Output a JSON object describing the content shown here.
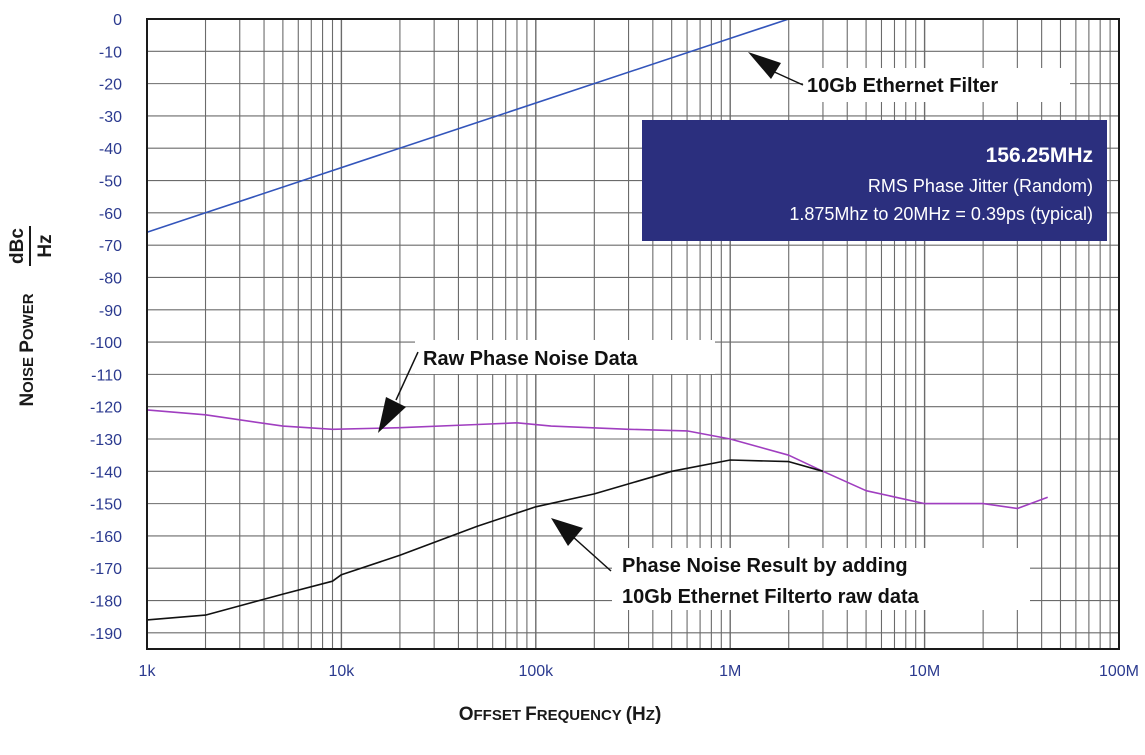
{
  "chart_data": {
    "type": "line",
    "x_scale": "log",
    "xlim": [
      1000,
      100000000
    ],
    "ylim": [
      -195,
      0
    ],
    "grid": true,
    "xticks": [
      "1k",
      "10k",
      "100k",
      "1M",
      "10M",
      "100M"
    ],
    "yticks": [
      "0",
      "-10",
      "-20",
      "-30",
      "-40",
      "-50",
      "-60",
      "-70",
      "-80",
      "-90",
      "-100",
      "-110",
      "-120",
      "-130",
      "-140",
      "-150",
      "-160",
      "-170",
      "-180",
      "-190"
    ],
    "xlabel": "Offset Frequency (Hz)",
    "ylabel_main": "Noise Power",
    "ylabel_num": "dBc",
    "ylabel_den": "Hz",
    "series": [
      {
        "name": "10Gb Ethernet Filter",
        "color": "#3355bb",
        "x": [
          1000,
          2000,
          1000000,
          2000000,
          20000000
        ],
        "y": [
          -66,
          -60,
          -6,
          0,
          0
        ]
      },
      {
        "name": "Raw Phase Noise Data",
        "color": "#a03ec0",
        "x": [
          1000,
          2000,
          5000,
          9000,
          20000,
          50000,
          80000,
          120000,
          300000,
          600000,
          1000000,
          2000000,
          3000000,
          5000000,
          10000000,
          20000000,
          30000000,
          43000000
        ],
        "y": [
          -121,
          -122.5,
          -126,
          -127,
          -126.5,
          -125.5,
          -125,
          -126,
          -127,
          -127.5,
          -130,
          -135,
          -140,
          -146,
          -150,
          -150,
          -151.5,
          -148
        ]
      },
      {
        "name": "Phase Noise Result by adding 10Gb Ethernet Filterto raw data",
        "color": "#111111",
        "x": [
          1000,
          2000,
          5000,
          9000,
          10000,
          20000,
          50000,
          100000,
          200000,
          500000,
          1000000,
          2000000,
          3000000
        ],
        "y": [
          -186,
          -184.5,
          -178,
          -174,
          -172,
          -166,
          -157,
          -151,
          -147,
          -140,
          -136.5,
          -137,
          -140
        ]
      }
    ]
  },
  "callouts": {
    "filter": "10Gb Ethernet Filter",
    "raw": "Raw Phase Noise Data",
    "result_line1": "Phase Noise Result by adding",
    "result_line2": "10Gb Ethernet Filterto raw data"
  },
  "infobox": {
    "title": "156.25MHz",
    "line1": "RMS Phase Jitter  (Random)",
    "line2": "1.875Mhz to 20MHz = 0.39ps (typical)",
    "bg_color": "#2b2f7e"
  }
}
